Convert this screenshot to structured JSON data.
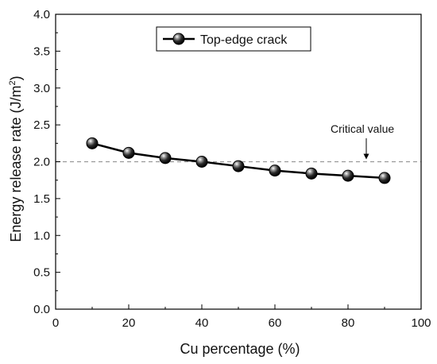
{
  "chart_data": {
    "type": "line",
    "title": "",
    "xlabel": "Cu percentage (%)",
    "ylabel_main": "Energy release rate (J/m",
    "ylabel_sup": "2",
    "ylabel_close": ")",
    "xlim": [
      0,
      100
    ],
    "ylim": [
      0,
      4.0
    ],
    "x_ticks": [
      0,
      20,
      40,
      60,
      80,
      100
    ],
    "x_tick_labels": [
      "0",
      "20",
      "40",
      "60",
      "80",
      "100"
    ],
    "y_ticks": [
      0,
      0.5,
      1.0,
      1.5,
      2.0,
      2.5,
      3.0,
      3.5,
      4.0
    ],
    "y_tick_labels": [
      "0.0",
      "0.5",
      "1.0",
      "1.5",
      "2.0",
      "2.5",
      "3.0",
      "3.5",
      "4.0"
    ],
    "grid": false,
    "legend_position": "top-left",
    "series": [
      {
        "name": "Top-edge crack",
        "x": [
          10,
          20,
          30,
          40,
          50,
          60,
          70,
          80,
          90
        ],
        "y": [
          2.25,
          2.12,
          2.05,
          2.0,
          1.94,
          1.88,
          1.84,
          1.81,
          1.78
        ],
        "color": "#000000"
      }
    ],
    "reference_line": {
      "y": 2.0,
      "style": "dashed",
      "color": "#999999"
    },
    "annotation": {
      "text": "Critical value",
      "arrow_x": 85,
      "arrow_target_y": 2.0
    }
  }
}
